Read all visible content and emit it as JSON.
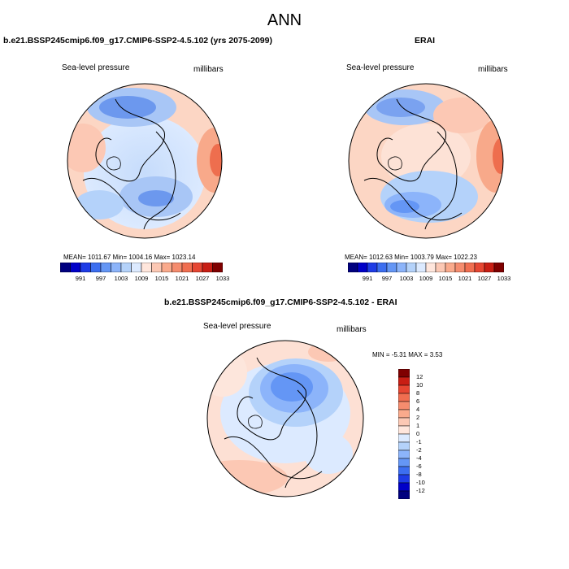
{
  "title": "ANN",
  "panels": [
    {
      "case_title": "b.e21.BSSP245cmip6.f09_g17.CMIP6-SSP2-4.5.102 (yrs 2075-2099)",
      "variable": "Sea-level pressure",
      "units": "millibars",
      "stats": "MEAN= 1011.67  Min= 1004.16  Max= 1023.14",
      "colorbar_labels": [
        "991",
        "997",
        "1003",
        "1009",
        "1015",
        "1021",
        "1027",
        "1033"
      ]
    },
    {
      "case_title": "ERAI",
      "variable": "Sea-level pressure",
      "units": "millibars",
      "stats": "MEAN= 1012.63  Min= 1003.79  Max= 1022.23",
      "colorbar_labels": [
        "991",
        "997",
        "1003",
        "1009",
        "1015",
        "1021",
        "1027",
        "1033"
      ]
    },
    {
      "case_title": "b.e21.BSSP245cmip6.f09_g17.CMIP6-SSP2-4.5.102 - ERAI",
      "variable": "Sea-level pressure",
      "units": "millibars",
      "stats": "MIN = -5.31 MAX = 3.53",
      "colorbar_labels": [
        "12",
        "10",
        "8",
        "6",
        "4",
        "2",
        "1",
        "0",
        "-1",
        "-2",
        "-4",
        "-6",
        "-8",
        "-10",
        "-12"
      ]
    }
  ],
  "colors": {
    "abs_scale": [
      "#00007f",
      "#0000c8",
      "#1e3ce6",
      "#3c6ef0",
      "#6496f5",
      "#8cb4fa",
      "#b4d2fa",
      "#dceaff",
      "#ffe6dc",
      "#fcc8b4",
      "#faaa8c",
      "#f58c6e",
      "#f06e50",
      "#e64632",
      "#c81e14",
      "#7f0000"
    ],
    "diff_scale": [
      "#00007f",
      "#0000c8",
      "#1e3ce6",
      "#3c6ef0",
      "#6496f5",
      "#8cb4fa",
      "#b4d2fa",
      "#dceaff",
      "#ffe6dc",
      "#fcc8b4",
      "#faaa8c",
      "#f58c6e",
      "#f06e50",
      "#e64632",
      "#c81e14",
      "#7f0000"
    ]
  }
}
